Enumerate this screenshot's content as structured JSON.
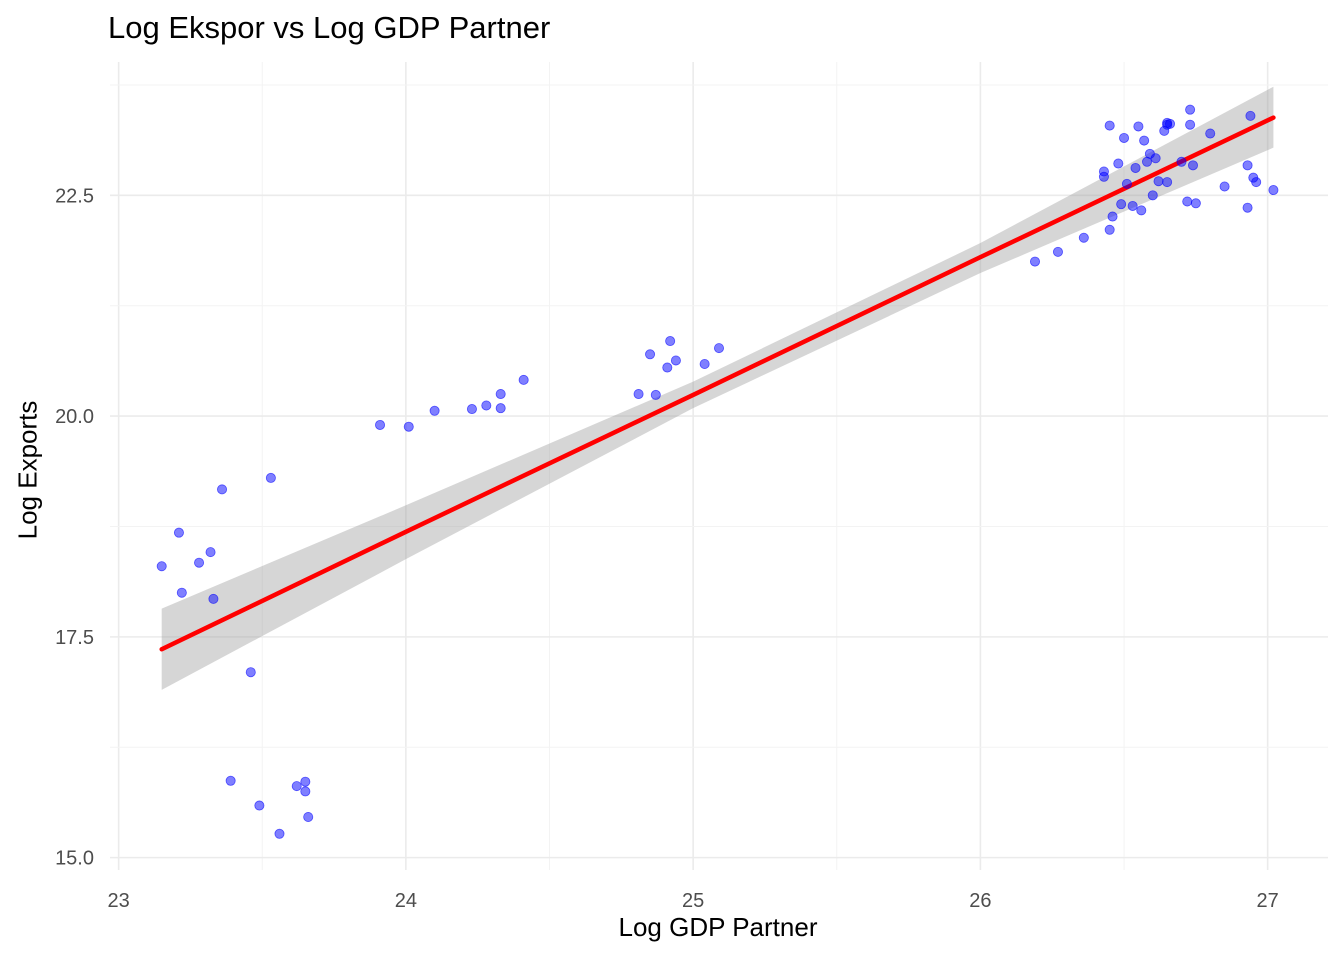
{
  "chart_data": {
    "type": "scatter",
    "title": "Log Ekspor vs Log GDP Partner",
    "xlabel": "Log GDP Partner",
    "ylabel": "Log Exports",
    "xlim": [
      22.97,
      27.21
    ],
    "ylim": [
      14.86,
      24.01
    ],
    "x_ticks": [
      23,
      24,
      25,
      26,
      27
    ],
    "x_tick_labels": [
      "23",
      "24",
      "25",
      "26",
      "27"
    ],
    "y_ticks": [
      15.0,
      17.5,
      20.0,
      22.5
    ],
    "y_tick_labels": [
      "15.0",
      "17.5",
      "20.0",
      "22.5"
    ],
    "grid": true,
    "colors": {
      "points": "#0000ff",
      "fit_line": "#ff0000",
      "confidence_band": "#999999",
      "grid": "#ebebeb"
    },
    "points": [
      {
        "x": 23.15,
        "y": 18.3
      },
      {
        "x": 23.21,
        "y": 18.68
      },
      {
        "x": 23.22,
        "y": 18.0
      },
      {
        "x": 23.28,
        "y": 18.34
      },
      {
        "x": 23.32,
        "y": 18.46
      },
      {
        "x": 23.33,
        "y": 17.93
      },
      {
        "x": 23.36,
        "y": 19.17
      },
      {
        "x": 23.46,
        "y": 17.1
      },
      {
        "x": 23.39,
        "y": 15.87
      },
      {
        "x": 23.49,
        "y": 15.59
      },
      {
        "x": 23.53,
        "y": 19.3
      },
      {
        "x": 23.56,
        "y": 15.27
      },
      {
        "x": 23.62,
        "y": 15.81
      },
      {
        "x": 23.65,
        "y": 15.75
      },
      {
        "x": 23.65,
        "y": 15.86
      },
      {
        "x": 23.66,
        "y": 15.46
      },
      {
        "x": 23.91,
        "y": 19.9
      },
      {
        "x": 24.01,
        "y": 19.88
      },
      {
        "x": 24.1,
        "y": 20.06
      },
      {
        "x": 24.23,
        "y": 20.08
      },
      {
        "x": 24.28,
        "y": 20.12
      },
      {
        "x": 24.33,
        "y": 20.09
      },
      {
        "x": 24.33,
        "y": 20.25
      },
      {
        "x": 24.41,
        "y": 20.41
      },
      {
        "x": 24.81,
        "y": 20.25
      },
      {
        "x": 24.85,
        "y": 20.7
      },
      {
        "x": 24.87,
        "y": 20.24
      },
      {
        "x": 24.91,
        "y": 20.55
      },
      {
        "x": 24.92,
        "y": 20.85
      },
      {
        "x": 24.94,
        "y": 20.63
      },
      {
        "x": 25.04,
        "y": 20.59
      },
      {
        "x": 25.09,
        "y": 20.77
      },
      {
        "x": 26.19,
        "y": 21.75
      },
      {
        "x": 26.27,
        "y": 21.86
      },
      {
        "x": 26.36,
        "y": 22.02
      },
      {
        "x": 26.43,
        "y": 22.71
      },
      {
        "x": 26.43,
        "y": 22.77
      },
      {
        "x": 26.45,
        "y": 22.11
      },
      {
        "x": 26.45,
        "y": 23.29
      },
      {
        "x": 26.46,
        "y": 22.26
      },
      {
        "x": 26.48,
        "y": 22.86
      },
      {
        "x": 26.49,
        "y": 22.4
      },
      {
        "x": 26.5,
        "y": 23.15
      },
      {
        "x": 26.51,
        "y": 22.63
      },
      {
        "x": 26.53,
        "y": 22.38
      },
      {
        "x": 26.54,
        "y": 22.81
      },
      {
        "x": 26.55,
        "y": 23.28
      },
      {
        "x": 26.56,
        "y": 22.33
      },
      {
        "x": 26.57,
        "y": 23.12
      },
      {
        "x": 26.58,
        "y": 22.88
      },
      {
        "x": 26.59,
        "y": 22.97
      },
      {
        "x": 26.6,
        "y": 22.5
      },
      {
        "x": 26.61,
        "y": 22.92
      },
      {
        "x": 26.62,
        "y": 22.66
      },
      {
        "x": 26.64,
        "y": 23.23
      },
      {
        "x": 26.65,
        "y": 23.3
      },
      {
        "x": 26.65,
        "y": 23.32
      },
      {
        "x": 26.66,
        "y": 23.31
      },
      {
        "x": 26.65,
        "y": 22.65
      },
      {
        "x": 26.7,
        "y": 22.88
      },
      {
        "x": 26.72,
        "y": 22.43
      },
      {
        "x": 26.73,
        "y": 23.3
      },
      {
        "x": 26.73,
        "y": 23.47
      },
      {
        "x": 26.74,
        "y": 22.84
      },
      {
        "x": 26.75,
        "y": 22.41
      },
      {
        "x": 26.8,
        "y": 23.2
      },
      {
        "x": 26.85,
        "y": 22.6
      },
      {
        "x": 26.93,
        "y": 22.84
      },
      {
        "x": 26.93,
        "y": 22.36
      },
      {
        "x": 26.94,
        "y": 23.4
      },
      {
        "x": 26.95,
        "y": 22.7
      },
      {
        "x": 26.96,
        "y": 22.65
      },
      {
        "x": 27.02,
        "y": 22.56
      }
    ],
    "fit": {
      "x": [
        23.15,
        24.0,
        25.0,
        26.0,
        27.02
      ],
      "y": [
        17.36,
        18.69,
        20.24,
        21.8,
        23.38
      ],
      "y_lower": [
        16.9,
        18.38,
        20.09,
        21.62,
        23.04
      ],
      "y_upper": [
        17.82,
        18.99,
        20.39,
        21.96,
        23.73
      ]
    }
  }
}
